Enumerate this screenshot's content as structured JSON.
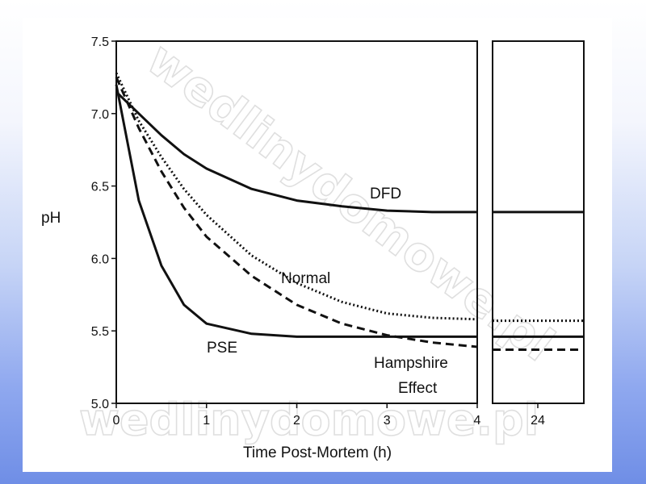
{
  "colors": {
    "ink": "#111111",
    "panel": "#ffffff",
    "background_top": "#ffffff",
    "background_bottom": "#6f8ee6"
  },
  "watermarks": [
    "wedlinydomowe.pl",
    "wedlinydomowe.pl"
  ],
  "chart_data": {
    "type": "line",
    "title": "",
    "xlabel": "Time Post-Mortem (h)",
    "ylabel": "pH",
    "x_ticks": [
      "0",
      "1",
      "2",
      "3",
      "4"
    ],
    "x_break_ticks": [
      "24"
    ],
    "y_ticks": [
      "5.0",
      "5.5",
      "6.0",
      "6.5",
      "7.0",
      "7.5"
    ],
    "xlim": [
      0,
      4
    ],
    "break_xlim": [
      24
    ],
    "ylim": [
      5.0,
      7.5
    ],
    "grid": false,
    "legend": "none",
    "series": [
      {
        "name": "DFD",
        "line_style": "solid",
        "x": [
          0,
          0.25,
          0.5,
          0.75,
          1,
          1.5,
          2,
          2.5,
          3,
          3.5,
          4
        ],
        "y": [
          7.15,
          7.0,
          6.85,
          6.72,
          6.62,
          6.48,
          6.4,
          6.36,
          6.33,
          6.32,
          6.32
        ],
        "y_at_24": 6.32
      },
      {
        "name": "Normal",
        "line_style": "dotted",
        "x": [
          0,
          0.25,
          0.5,
          0.75,
          1,
          1.5,
          2,
          2.5,
          3,
          3.5,
          4
        ],
        "y": [
          7.28,
          6.95,
          6.7,
          6.48,
          6.3,
          6.02,
          5.83,
          5.7,
          5.62,
          5.59,
          5.58
        ],
        "y_at_24": 5.57
      },
      {
        "name": "PSE",
        "line_style": "solid",
        "x": [
          0,
          0.25,
          0.5,
          0.75,
          1,
          1.5,
          2,
          2.5,
          3,
          3.5,
          4
        ],
        "y": [
          7.2,
          6.4,
          5.95,
          5.68,
          5.55,
          5.48,
          5.46,
          5.46,
          5.46,
          5.46,
          5.46
        ],
        "y_at_24": 5.46
      },
      {
        "name": "Hampshire Effect",
        "line_style": "dashed",
        "x": [
          0,
          0.25,
          0.5,
          0.75,
          1,
          1.5,
          2,
          2.5,
          3,
          3.5,
          4
        ],
        "y": [
          7.25,
          6.9,
          6.6,
          6.35,
          6.15,
          5.88,
          5.68,
          5.55,
          5.47,
          5.42,
          5.39
        ],
        "y_at_24": 5.37
      }
    ]
  }
}
